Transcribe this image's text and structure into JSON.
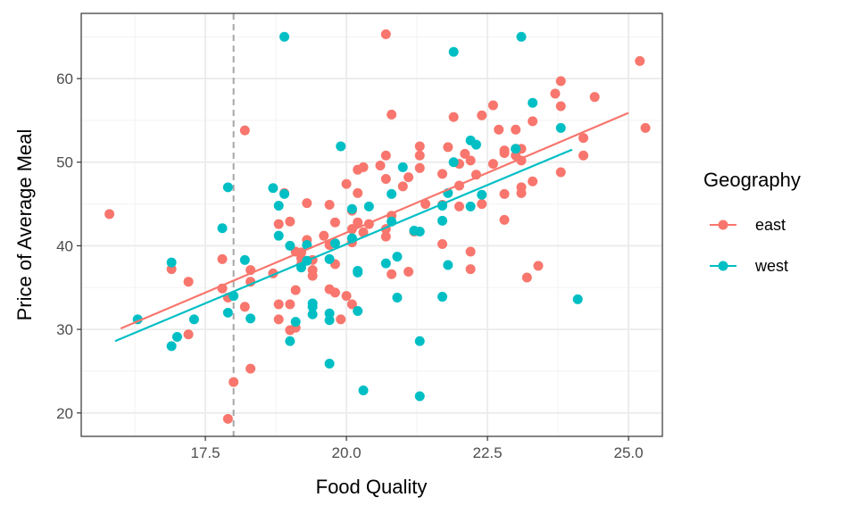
{
  "chart_data": {
    "type": "scatter",
    "xlabel": "Food Quality",
    "ylabel": "Price of Average Meal",
    "x_ticks": [
      17.5,
      20.0,
      22.5,
      25.0
    ],
    "x_tick_labels": [
      "17.5",
      "20.0",
      "22.5",
      "25.0"
    ],
    "y_ticks": [
      20,
      30,
      40,
      50,
      60
    ],
    "y_tick_labels": [
      "20",
      "30",
      "40",
      "50",
      "60"
    ],
    "xlim": [
      15.3,
      25.6
    ],
    "ylim": [
      17.2,
      67.8
    ],
    "grid": true,
    "theme": "bw",
    "vline": {
      "x": 18.0,
      "style": "dashed",
      "color": "#a6a6a6"
    },
    "legend": {
      "title": "Geography",
      "position": "right"
    },
    "series": [
      {
        "name": "east",
        "color": "#F8766D",
        "trend_line": {
          "x": [
            16.0,
            25.0
          ],
          "y": [
            30.1,
            55.9
          ]
        },
        "points": [
          [
            15.8,
            43.8
          ],
          [
            16.9,
            37.2
          ],
          [
            17.2,
            35.7
          ],
          [
            17.2,
            29.4
          ],
          [
            17.8,
            38.4
          ],
          [
            17.8,
            34.9
          ],
          [
            17.9,
            33.8
          ],
          [
            17.9,
            19.3
          ],
          [
            18.0,
            23.7
          ],
          [
            18.2,
            32.7
          ],
          [
            18.2,
            53.8
          ],
          [
            18.3,
            37.1
          ],
          [
            18.3,
            35.7
          ],
          [
            18.3,
            25.3
          ],
          [
            18.7,
            36.7
          ],
          [
            18.8,
            42.6
          ],
          [
            18.8,
            33.0
          ],
          [
            18.8,
            31.2
          ],
          [
            18.9,
            46.3
          ],
          [
            19.0,
            42.9
          ],
          [
            19.0,
            33.0
          ],
          [
            19.0,
            29.9
          ],
          [
            19.1,
            39.3
          ],
          [
            19.1,
            34.7
          ],
          [
            19.1,
            30.2
          ],
          [
            19.2,
            39.2
          ],
          [
            19.2,
            38.5
          ],
          [
            19.2,
            37.8
          ],
          [
            19.3,
            45.1
          ],
          [
            19.3,
            40.7
          ],
          [
            19.4,
            38.3
          ],
          [
            19.4,
            37.1
          ],
          [
            19.4,
            36.4
          ],
          [
            19.6,
            41.2
          ],
          [
            19.7,
            44.9
          ],
          [
            19.7,
            40.1
          ],
          [
            19.7,
            34.8
          ],
          [
            19.8,
            42.8
          ],
          [
            19.8,
            37.8
          ],
          [
            19.8,
            34.4
          ],
          [
            19.9,
            31.2
          ],
          [
            20.0,
            47.4
          ],
          [
            20.0,
            34.0
          ],
          [
            20.1,
            44.2
          ],
          [
            20.1,
            42.0
          ],
          [
            20.1,
            40.4
          ],
          [
            20.1,
            33.0
          ],
          [
            20.2,
            49.1
          ],
          [
            20.2,
            46.3
          ],
          [
            20.2,
            42.8
          ],
          [
            20.3,
            49.4
          ],
          [
            20.3,
            41.6
          ],
          [
            20.4,
            42.6
          ],
          [
            20.6,
            49.6
          ],
          [
            20.7,
            50.8
          ],
          [
            20.7,
            48.0
          ],
          [
            20.7,
            42.0
          ],
          [
            20.7,
            41.1
          ],
          [
            20.8,
            43.6
          ],
          [
            20.8,
            36.6
          ],
          [
            20.7,
            65.3
          ],
          [
            20.8,
            55.7
          ],
          [
            21.0,
            47.1
          ],
          [
            21.1,
            48.2
          ],
          [
            21.2,
            41.7
          ],
          [
            21.1,
            36.9
          ],
          [
            21.3,
            51.9
          ],
          [
            21.3,
            50.8
          ],
          [
            21.3,
            49.3
          ],
          [
            21.4,
            45.0
          ],
          [
            21.7,
            48.6
          ],
          [
            21.7,
            44.9
          ],
          [
            21.7,
            40.2
          ],
          [
            21.8,
            51.8
          ],
          [
            21.9,
            55.4
          ],
          [
            22.0,
            49.8
          ],
          [
            22.0,
            47.2
          ],
          [
            22.0,
            44.7
          ],
          [
            22.1,
            51.0
          ],
          [
            22.2,
            39.3
          ],
          [
            22.2,
            37.2
          ],
          [
            22.2,
            50.2
          ],
          [
            22.3,
            48.5
          ],
          [
            22.4,
            55.6
          ],
          [
            22.4,
            45.0
          ],
          [
            22.6,
            56.8
          ],
          [
            22.6,
            49.8
          ],
          [
            22.7,
            53.9
          ],
          [
            22.8,
            51.4
          ],
          [
            22.8,
            51.1
          ],
          [
            22.8,
            46.2
          ],
          [
            22.8,
            43.1
          ],
          [
            23.0,
            51.6
          ],
          [
            23.0,
            50.8
          ],
          [
            23.0,
            53.9
          ],
          [
            23.1,
            51.6
          ],
          [
            23.1,
            50.2
          ],
          [
            23.1,
            47.0
          ],
          [
            23.1,
            46.3
          ],
          [
            23.2,
            36.2
          ],
          [
            23.3,
            54.9
          ],
          [
            23.3,
            47.7
          ],
          [
            23.4,
            37.6
          ],
          [
            23.7,
            58.2
          ],
          [
            23.8,
            59.7
          ],
          [
            23.8,
            56.7
          ],
          [
            23.8,
            48.8
          ],
          [
            24.2,
            52.9
          ],
          [
            24.2,
            50.8
          ],
          [
            24.4,
            57.8
          ],
          [
            25.2,
            62.1
          ],
          [
            25.3,
            54.1
          ]
        ]
      },
      {
        "name": "west",
        "color": "#00BFC4",
        "trend_line": {
          "x": [
            15.9,
            24.0
          ],
          "y": [
            28.6,
            51.5
          ]
        },
        "points": [
          [
            16.3,
            31.2
          ],
          [
            16.9,
            38.0
          ],
          [
            16.9,
            28.0
          ],
          [
            17.0,
            29.1
          ],
          [
            17.3,
            31.2
          ],
          [
            17.8,
            42.1
          ],
          [
            17.9,
            47.0
          ],
          [
            18.0,
            34.0
          ],
          [
            17.9,
            32.0
          ],
          [
            18.2,
            38.3
          ],
          [
            18.3,
            31.3
          ],
          [
            18.7,
            46.9
          ],
          [
            18.8,
            44.8
          ],
          [
            18.8,
            41.2
          ],
          [
            18.9,
            46.2
          ],
          [
            19.0,
            40.0
          ],
          [
            19.0,
            28.6
          ],
          [
            18.9,
            65.0
          ],
          [
            19.1,
            30.9
          ],
          [
            19.2,
            37.4
          ],
          [
            19.3,
            40.1
          ],
          [
            19.3,
            38.2
          ],
          [
            19.4,
            33.1
          ],
          [
            19.4,
            32.7
          ],
          [
            19.4,
            31.8
          ],
          [
            19.7,
            31.9
          ],
          [
            19.7,
            31.1
          ],
          [
            19.7,
            38.4
          ],
          [
            19.8,
            40.3
          ],
          [
            19.7,
            25.9
          ],
          [
            19.9,
            51.9
          ],
          [
            20.1,
            44.4
          ],
          [
            20.1,
            40.9
          ],
          [
            20.2,
            37.0
          ],
          [
            20.2,
            36.8
          ],
          [
            20.2,
            32.2
          ],
          [
            20.3,
            22.7
          ],
          [
            20.4,
            44.7
          ],
          [
            20.7,
            37.9
          ],
          [
            20.8,
            46.2
          ],
          [
            20.8,
            42.9
          ],
          [
            20.9,
            33.8
          ],
          [
            20.9,
            38.7
          ],
          [
            21.0,
            49.4
          ],
          [
            21.2,
            41.8
          ],
          [
            21.3,
            41.7
          ],
          [
            21.3,
            28.6
          ],
          [
            21.3,
            22.0
          ],
          [
            21.7,
            43.0
          ],
          [
            21.7,
            44.8
          ],
          [
            21.7,
            33.9
          ],
          [
            21.8,
            46.3
          ],
          [
            21.8,
            37.7
          ],
          [
            21.9,
            50.0
          ],
          [
            21.9,
            63.2
          ],
          [
            22.2,
            52.6
          ],
          [
            22.3,
            52.1
          ],
          [
            22.2,
            44.7
          ],
          [
            22.4,
            46.1
          ],
          [
            23.0,
            51.6
          ],
          [
            23.1,
            65.0
          ],
          [
            23.3,
            57.1
          ],
          [
            23.8,
            54.1
          ],
          [
            24.1,
            33.6
          ]
        ]
      }
    ]
  }
}
